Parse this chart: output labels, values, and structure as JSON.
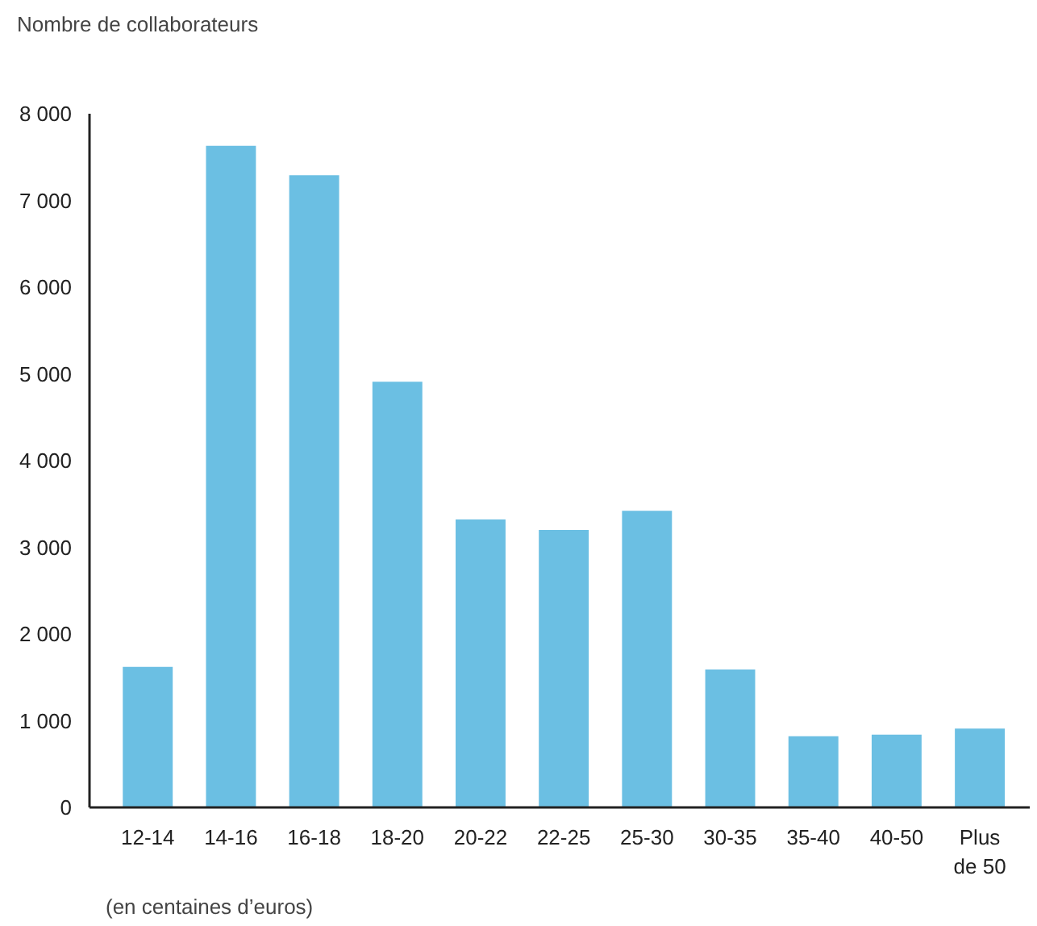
{
  "chart_data": {
    "type": "bar",
    "ylabel": "Nombre de collaborateurs",
    "xlabel": "(en centaines d’euros)",
    "categories": [
      "12-14",
      "14-16",
      "16-18",
      "18-20",
      "20-22",
      "22-25",
      "25-30",
      "30-35",
      "35-40",
      "40-50",
      "Plus\nde 50"
    ],
    "values": [
      1620,
      7630,
      7290,
      4910,
      3320,
      3200,
      3420,
      1590,
      820,
      840,
      910
    ],
    "color": "#6bbfe3",
    "ylim": [
      0,
      8000
    ],
    "yticks": [
      {
        "value": 0,
        "label": "0"
      },
      {
        "value": 1000,
        "label": "1 000"
      },
      {
        "value": 2000,
        "label": "2 000"
      },
      {
        "value": 3000,
        "label": "3 000"
      },
      {
        "value": 4000,
        "label": "4 000"
      },
      {
        "value": 5000,
        "label": "5 000"
      },
      {
        "value": 6000,
        "label": "6 000"
      },
      {
        "value": 7000,
        "label": "7 000"
      },
      {
        "value": 8000,
        "label": "8 000"
      }
    ],
    "grid": false
  }
}
